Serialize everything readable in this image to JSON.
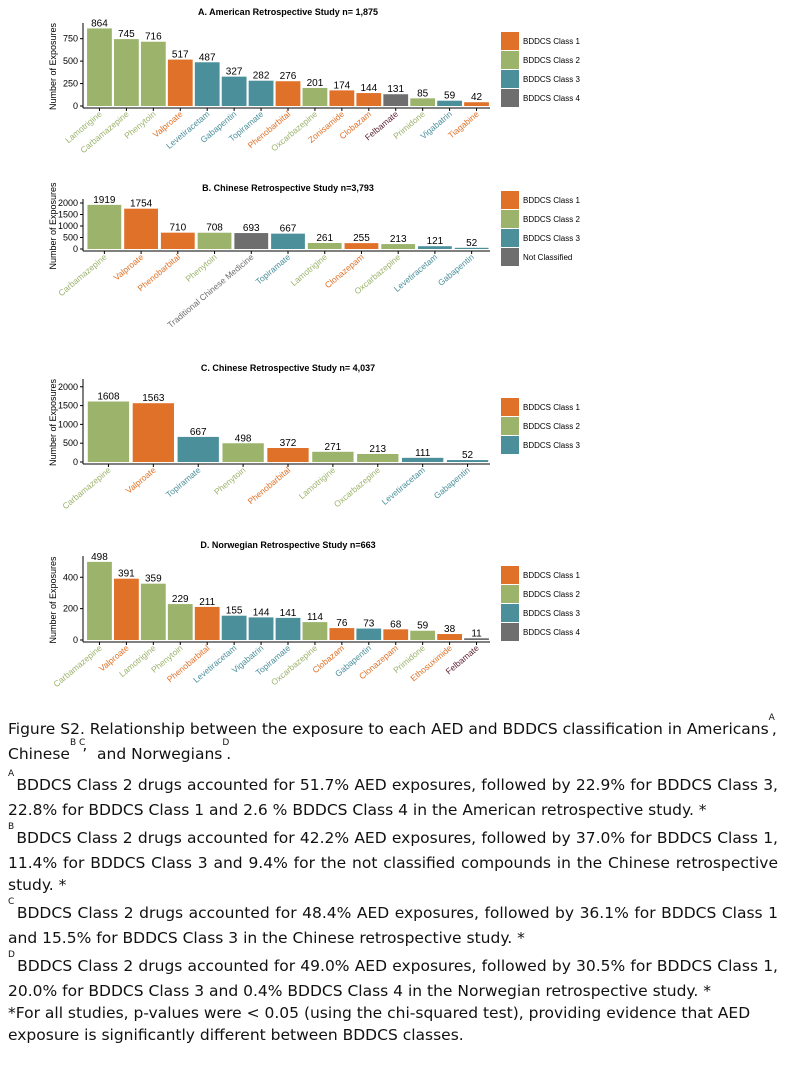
{
  "colors": {
    "BDDCS Class 1": "#e07128",
    "BDDCS Class 2": "#9bb36b",
    "BDDCS Class 3": "#4a8f9a",
    "BDDCS Class 4": "#6e6e6e",
    "Not Classified": "#6e6e6e",
    "Traditional": "#6e6e6e",
    "Felbamate_label": "#5a1e2e"
  },
  "chart_data": [
    {
      "type": "bar",
      "title": "A. American Retrospective Study n= 1,875",
      "ylabel": "Number of Exposures",
      "xlabel": "",
      "ylim": [
        0,
        880
      ],
      "yticks": [
        0,
        250,
        500,
        750
      ],
      "categories": [
        "Lamotrigine",
        "Carbamazepine",
        "Phenytoin",
        "Valproate",
        "Levetiracetam",
        "Gabapentin",
        "Topiramate",
        "Phenobarbital",
        "Oxcarbazepine",
        "Zonisamide",
        "Clobazam",
        "Felbamate",
        "Primidone",
        "Vigabatrin",
        "Tiagabine"
      ],
      "values": [
        864,
        745,
        716,
        517,
        487,
        327,
        282,
        276,
        201,
        174,
        144,
        131,
        85,
        59,
        42
      ],
      "classes": [
        "BDDCS Class 2",
        "BDDCS Class 2",
        "BDDCS Class 2",
        "BDDCS Class 1",
        "BDDCS Class 3",
        "BDDCS Class 3",
        "BDDCS Class 3",
        "BDDCS Class 1",
        "BDDCS Class 2",
        "BDDCS Class 1",
        "BDDCS Class 1",
        "BDDCS Class 4",
        "BDDCS Class 2",
        "BDDCS Class 3",
        "BDDCS Class 1"
      ],
      "legend": [
        "BDDCS Class 1",
        "BDDCS Class 2",
        "BDDCS Class 3",
        "BDDCS Class 4"
      ]
    },
    {
      "type": "bar",
      "title": "B. Chinese Retrospective Study n=3,793",
      "ylabel": "Number of Exposures",
      "xlabel": "",
      "ylim": [
        0,
        2000
      ],
      "yticks": [
        0,
        500,
        1000,
        1500,
        2000
      ],
      "categories": [
        "Carbamazepine",
        "Valproate",
        "Phenobarbital",
        "Phenytoin",
        "Traditional Chinese Medicine",
        "Topiramate",
        "Lamotrigine",
        "Clonazepam",
        "Oxcarbazepine",
        "Levetiracetam",
        "Gabapentin"
      ],
      "values": [
        1919,
        1754,
        710,
        708,
        693,
        667,
        261,
        255,
        213,
        121,
        52
      ],
      "classes": [
        "BDDCS Class 2",
        "BDDCS Class 1",
        "BDDCS Class 1",
        "BDDCS Class 2",
        "Not Classified",
        "BDDCS Class 3",
        "BDDCS Class 2",
        "BDDCS Class 1",
        "BDDCS Class 2",
        "BDDCS Class 3",
        "BDDCS Class 3"
      ],
      "legend": [
        "BDDCS Class 1",
        "BDDCS Class 2",
        "BDDCS Class 3",
        "Not Classified"
      ]
    },
    {
      "type": "bar",
      "title": "C. Chinese Retrospective Study n= 4,037",
      "ylabel": "Number of Exposures",
      "xlabel": "",
      "ylim": [
        0,
        2100
      ],
      "yticks": [
        0,
        500,
        1000,
        1500,
        2000
      ],
      "categories": [
        "Carbamazepine",
        "Valproate",
        "Topiramate",
        "Phenytoin",
        "Phenobarbital",
        "Lamotrigine",
        "Oxcarbazepine",
        "Levetiracetam",
        "Gabapentin"
      ],
      "values": [
        1608,
        1563,
        667,
        498,
        372,
        271,
        213,
        111,
        52
      ],
      "classes": [
        "BDDCS Class 2",
        "BDDCS Class 1",
        "BDDCS Class 3",
        "BDDCS Class 2",
        "BDDCS Class 1",
        "BDDCS Class 2",
        "BDDCS Class 2",
        "BDDCS Class 3",
        "BDDCS Class 3"
      ],
      "legend": [
        "BDDCS Class 1",
        "BDDCS Class 2",
        "BDDCS Class 3"
      ]
    },
    {
      "type": "bar",
      "title": "D. Norwegian Retrospective Study n=663",
      "ylabel": "Number of Exposures",
      "xlabel": "",
      "ylim": [
        0,
        510
      ],
      "yticks": [
        0,
        200,
        400
      ],
      "categories": [
        "Carbamazepine",
        "Valproate",
        "Lamotrigine",
        "Phenytoin",
        "Phenobarbital",
        "Levetiracetam",
        "Vigabatrin",
        "Topiramate",
        "Oxcarbazepine",
        "Clobazam",
        "Gabapentin",
        "Clonazepam",
        "Primidone",
        "Ethosuximide",
        "Felbamate"
      ],
      "values": [
        498,
        391,
        359,
        229,
        211,
        155,
        144,
        141,
        114,
        76,
        73,
        68,
        59,
        38,
        11
      ],
      "classes": [
        "BDDCS Class 2",
        "BDDCS Class 1",
        "BDDCS Class 2",
        "BDDCS Class 2",
        "BDDCS Class 1",
        "BDDCS Class 3",
        "BDDCS Class 3",
        "BDDCS Class 3",
        "BDDCS Class 2",
        "BDDCS Class 1",
        "BDDCS Class 3",
        "BDDCS Class 1",
        "BDDCS Class 2",
        "BDDCS Class 1",
        "BDDCS Class 4"
      ],
      "legend": [
        "BDDCS Class 1",
        "BDDCS Class 2",
        "BDDCS Class 3",
        "BDDCS Class 4"
      ]
    }
  ],
  "caption": {
    "title_text": "Figure S2. Relationship between the exposure to each AED and BDDCS classification in Americans",
    "sup_A": "A",
    "comma1": ",",
    "line2_chinese": "Chinese",
    "sup_BC": "B C",
    "and_norwegians": "and Norwegians",
    "sup_D": "D",
    "period": ".",
    "note_A_marker": "A",
    "note_A": "BDDCS Class 2 drugs accounted for 51.7% AED exposures, followed by 22.9% for BDDCS Class 3, 22.8% for BDDCS Class 1 and 2.6 % BDDCS Class 4 in the American retrospective study. *",
    "note_B_marker": "B",
    "note_B": "BDDCS Class 2 drugs accounted for 42.2% AED exposures, followed by 37.0% for BDDCS Class 1, 11.4% for BDDCS Class 3 and 9.4% for the not classified compounds in the Chinese retrospective study. *",
    "note_C_marker": "C",
    "note_C": "BDDCS Class 2 drugs accounted for 48.4% AED exposures, followed by 36.1% for BDDCS Class 1 and 15.5% for BDDCS Class 3 in the Chinese retrospective study. *",
    "note_D_marker": "D",
    "note_D": "BDDCS Class 2 drugs accounted for 49.0% AED exposures, followed by 30.5% for BDDCS Class 1, 20.0% for BDDCS Class 3 and 0.4% BDDCS Class 4 in the Norwegian retrospective study. *",
    "footnote": "*For all studies, p-values were < 0.05 (using the chi-squared test), providing evidence that AED exposure is significantly different between BDDCS classes."
  }
}
